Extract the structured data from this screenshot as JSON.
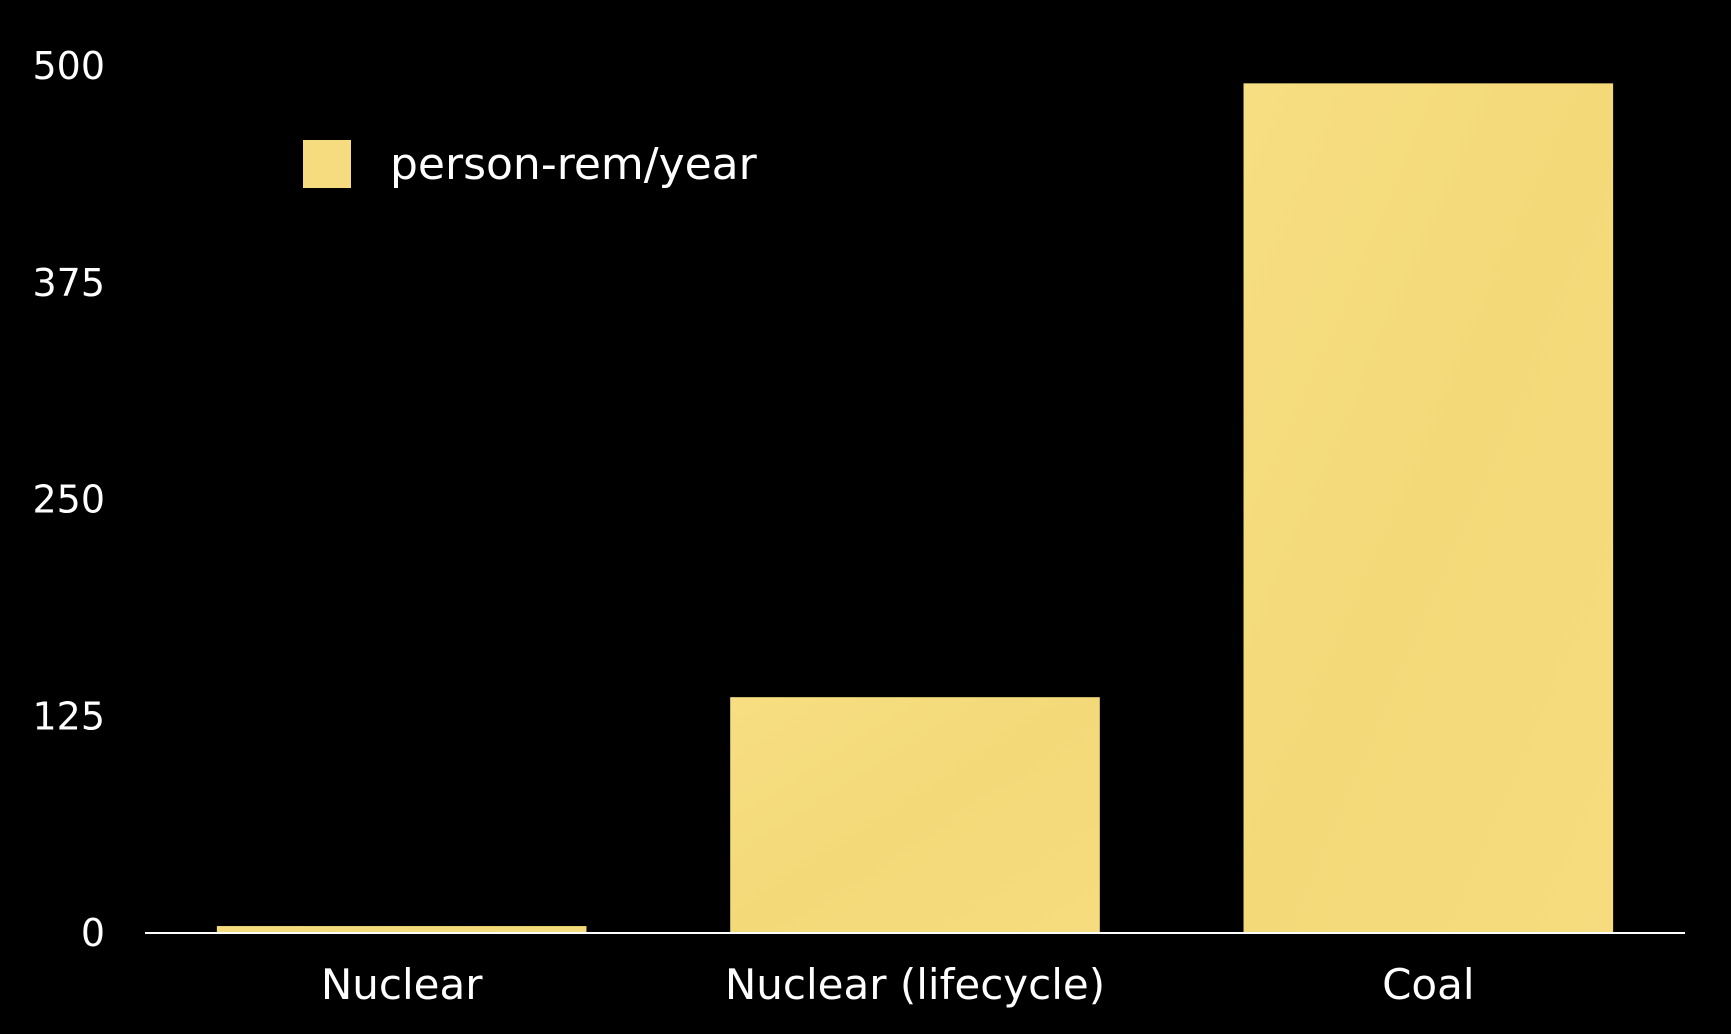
{
  "chart_data": {
    "type": "bar",
    "categories": [
      "Nuclear",
      "Nuclear (lifecycle)",
      "Coal"
    ],
    "series": [
      {
        "name": "person-rem/year",
        "values": [
          4,
          136,
          490
        ],
        "color": "#f6dc7e"
      }
    ],
    "yticks": [
      "0",
      "125",
      "250",
      "375",
      "500"
    ],
    "ylim": [
      0,
      500
    ],
    "title": "",
    "xlabel": "",
    "ylabel": "",
    "grid": false,
    "legend": "top-left",
    "background": "#000000",
    "text_color": "#ffffff"
  }
}
